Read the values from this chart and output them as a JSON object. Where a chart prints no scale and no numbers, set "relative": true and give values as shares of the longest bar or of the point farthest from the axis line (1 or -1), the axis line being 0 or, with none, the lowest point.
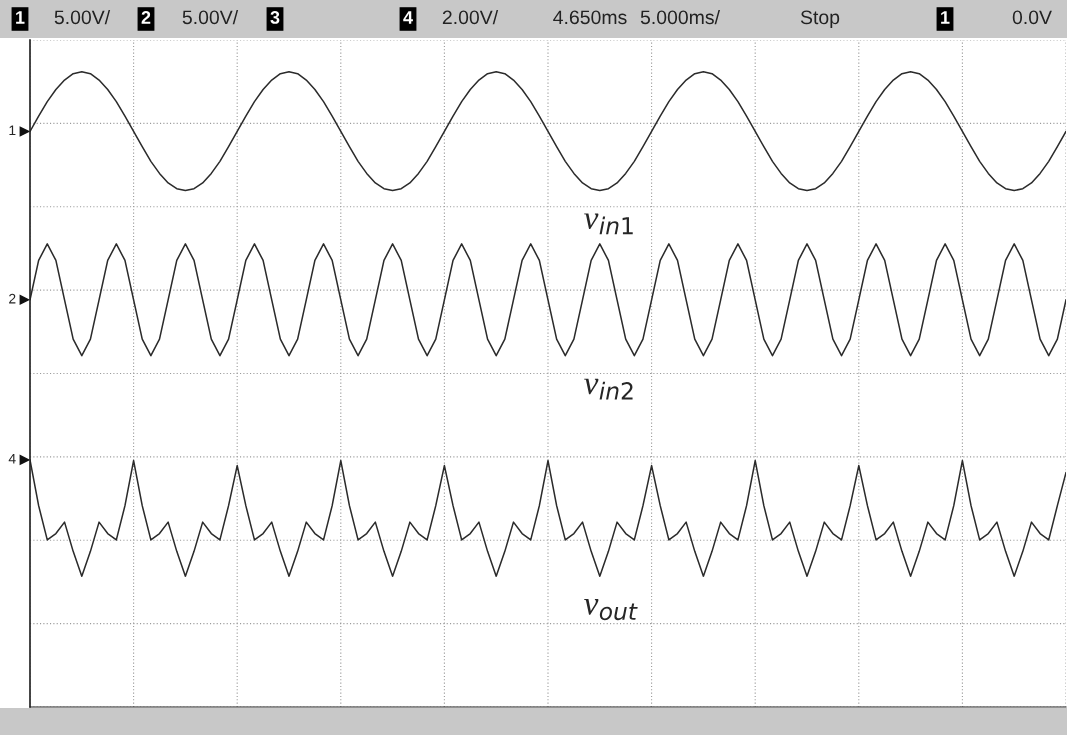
{
  "chart_data": {
    "type": "line",
    "relative": true,
    "categories": [
      null,
      null,
      null,
      null,
      null,
      null,
      null,
      null,
      null,
      null,
      null,
      null,
      null,
      null,
      null,
      null,
      null,
      null,
      null,
      null,
      null,
      null,
      null,
      null,
      null,
      null,
      null,
      null,
      null,
      null,
      null,
      null,
      null,
      null,
      null,
      null,
      null,
      null,
      null,
      null,
      null,
      null,
      null,
      null,
      null,
      null,
      null,
      null,
      null,
      null,
      null,
      null,
      null,
      null,
      null,
      null,
      null,
      null,
      null,
      null,
      null,
      null,
      null,
      null,
      null,
      null,
      null,
      null,
      null,
      null,
      null,
      null,
      null,
      null,
      null,
      null,
      null,
      null,
      null,
      null,
      null,
      null,
      null,
      null,
      null,
      null,
      null,
      null,
      null,
      null,
      null,
      null,
      null,
      null,
      null,
      null,
      null,
      null,
      null,
      null,
      null,
      null,
      null,
      null,
      null,
      null,
      null,
      null,
      null,
      null,
      null,
      null,
      null,
      null,
      null,
      null,
      null,
      null,
      null,
      null,
      null
    ],
    "tick_labels": false,
    "grid": true,
    "line_style": "solid",
    "series": [
      {
        "name": "v$_{in1}$",
        "color": "#2b2b2b",
        "values": [
          0.906,
          0.93,
          0.953,
          0.972,
          0.987,
          0.997,
          1.0,
          0.997,
          0.987,
          0.972,
          0.953,
          0.93,
          0.906,
          0.882,
          0.859,
          0.84,
          0.825,
          0.816,
          0.813,
          0.816,
          0.825,
          0.84,
          0.859,
          0.882,
          0.906,
          0.93,
          0.953,
          0.972,
          0.987,
          0.997,
          1.0,
          0.997,
          0.987,
          0.972,
          0.953,
          0.93,
          0.906,
          0.882,
          0.859,
          0.84,
          0.825,
          0.816,
          0.813,
          0.816,
          0.825,
          0.84,
          0.859,
          0.882,
          0.906,
          0.93,
          0.953,
          0.972,
          0.987,
          0.997,
          1.0,
          0.997,
          0.987,
          0.972,
          0.953,
          0.93,
          0.906,
          0.882,
          0.859,
          0.84,
          0.825,
          0.816,
          0.813,
          0.816,
          0.825,
          0.84,
          0.859,
          0.882,
          0.906,
          0.93,
          0.953,
          0.972,
          0.987,
          0.997,
          1.0,
          0.997,
          0.987,
          0.972,
          0.953,
          0.93,
          0.906,
          0.882,
          0.859,
          0.84,
          0.825,
          0.816,
          0.813,
          0.816,
          0.825,
          0.84,
          0.859,
          0.882,
          0.906,
          0.93,
          0.953,
          0.972,
          0.987,
          0.997,
          1.0,
          0.997,
          0.987,
          0.972,
          0.953,
          0.93,
          0.906,
          0.882,
          0.859,
          0.84,
          0.825,
          0.816,
          0.813,
          0.816,
          0.825,
          0.84,
          0.859,
          0.882,
          0.906
        ]
      },
      {
        "name": "v$_{in2}$",
        "color": "#2b2b2b",
        "values": [
          0.641,
          0.703,
          0.729,
          0.703,
          0.641,
          0.579,
          0.553,
          0.579,
          0.641,
          0.703,
          0.729,
          0.703,
          0.641,
          0.579,
          0.553,
          0.579,
          0.641,
          0.703,
          0.729,
          0.703,
          0.641,
          0.579,
          0.553,
          0.579,
          0.641,
          0.703,
          0.729,
          0.703,
          0.641,
          0.579,
          0.553,
          0.579,
          0.641,
          0.703,
          0.729,
          0.703,
          0.641,
          0.579,
          0.553,
          0.579,
          0.641,
          0.703,
          0.729,
          0.703,
          0.641,
          0.579,
          0.553,
          0.579,
          0.641,
          0.703,
          0.729,
          0.703,
          0.641,
          0.579,
          0.553,
          0.579,
          0.641,
          0.703,
          0.729,
          0.703,
          0.641,
          0.579,
          0.553,
          0.579,
          0.641,
          0.703,
          0.729,
          0.703,
          0.641,
          0.579,
          0.553,
          0.579,
          0.641,
          0.703,
          0.729,
          0.703,
          0.641,
          0.579,
          0.553,
          0.579,
          0.641,
          0.703,
          0.729,
          0.703,
          0.641,
          0.579,
          0.553,
          0.579,
          0.641,
          0.703,
          0.729,
          0.703,
          0.641,
          0.579,
          0.553,
          0.579,
          0.641,
          0.703,
          0.729,
          0.703,
          0.641,
          0.579,
          0.553,
          0.579,
          0.641,
          0.703,
          0.729,
          0.703,
          0.641,
          0.579,
          0.553,
          0.579,
          0.641,
          0.703,
          0.729,
          0.703,
          0.641,
          0.579,
          0.553,
          0.579,
          0.641
        ]
      },
      {
        "name": "v$_{out}$",
        "color": "#2b2b2b",
        "values": [
          0.389,
          0.317,
          0.263,
          0.273,
          0.291,
          0.245,
          0.206,
          0.245,
          0.291,
          0.273,
          0.263,
          0.317,
          0.388,
          0.317,
          0.263,
          0.273,
          0.291,
          0.245,
          0.206,
          0.245,
          0.291,
          0.273,
          0.263,
          0.317,
          0.38,
          0.317,
          0.263,
          0.273,
          0.291,
          0.245,
          0.206,
          0.245,
          0.291,
          0.273,
          0.263,
          0.317,
          0.388,
          0.317,
          0.263,
          0.273,
          0.291,
          0.245,
          0.206,
          0.245,
          0.291,
          0.273,
          0.263,
          0.317,
          0.38,
          0.317,
          0.263,
          0.273,
          0.291,
          0.245,
          0.206,
          0.245,
          0.291,
          0.273,
          0.263,
          0.317,
          0.388,
          0.317,
          0.263,
          0.273,
          0.291,
          0.245,
          0.206,
          0.245,
          0.291,
          0.273,
          0.263,
          0.317,
          0.38,
          0.317,
          0.263,
          0.273,
          0.291,
          0.245,
          0.206,
          0.245,
          0.291,
          0.273,
          0.263,
          0.317,
          0.388,
          0.317,
          0.263,
          0.273,
          0.291,
          0.245,
          0.206,
          0.245,
          0.291,
          0.273,
          0.263,
          0.317,
          0.38,
          0.317,
          0.263,
          0.273,
          0.291,
          0.245,
          0.206,
          0.245,
          0.291,
          0.273,
          0.263,
          0.317,
          0.388,
          0.317,
          0.263,
          0.273,
          0.291,
          0.245,
          0.206,
          0.245,
          0.291,
          0.273,
          0.263,
          0.317,
          0.369
        ]
      }
    ],
    "annotations": [
      "1",
      "5.00V/",
      "2",
      "5.00V/",
      "3",
      "4",
      "2.00V/",
      "4.650ms",
      "5.000ms/",
      "Stop",
      "1",
      "0.0V",
      "1",
      "2",
      "4"
    ]
  }
}
